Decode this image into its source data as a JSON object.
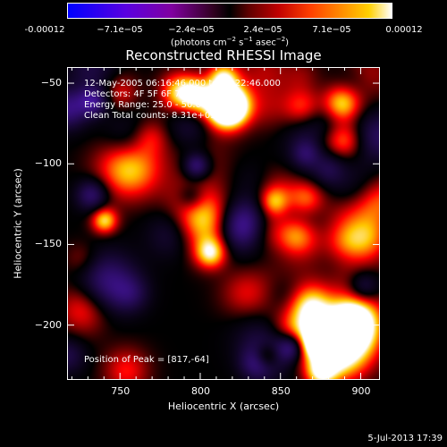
{
  "colorbar": {
    "tick_labels": [
      "-0.00012",
      "−7.1e−05",
      "−2.4e−05",
      "2.4e−05",
      "7.1e−05",
      "0.00012"
    ],
    "units_prefix": "(photons cm",
    "units_exp1": "−2",
    "units_mid1": " s",
    "units_exp2": "−1",
    "units_mid2": " asec",
    "units_exp3": "−2",
    "units_suffix": ")"
  },
  "chart_data": {
    "type": "heatmap",
    "title": "Reconstructed RHESSI Image",
    "xlabel": "Heliocentric X (arcsec)",
    "ylabel": "Heliocentric Y (arcsec)",
    "xlim": [
      717,
      912
    ],
    "ylim": [
      -234,
      -40
    ],
    "x_ticks": [
      750,
      800,
      850,
      900
    ],
    "y_ticks": [
      -50,
      -100,
      -150,
      -200
    ],
    "y_tick_labels": [
      "−50",
      "−100",
      "−150",
      "−200"
    ],
    "colorbar_range": [
      -0.00012,
      0.00012
    ],
    "peak": [
      817,
      -64
    ],
    "annotations": [
      "12-May-2005 06:16:46.000 to 06:22:46.000",
      "Detectors: 4F 5F 6F 7F 8F 9F",
      "Energy Range: 25.0 - 50.0 keV",
      "Clean      Total counts: 8.31e+03"
    ],
    "peak_label": "Position of Peak = [817,-64]"
  },
  "timestamp": "5-Jul-2013 17:39"
}
